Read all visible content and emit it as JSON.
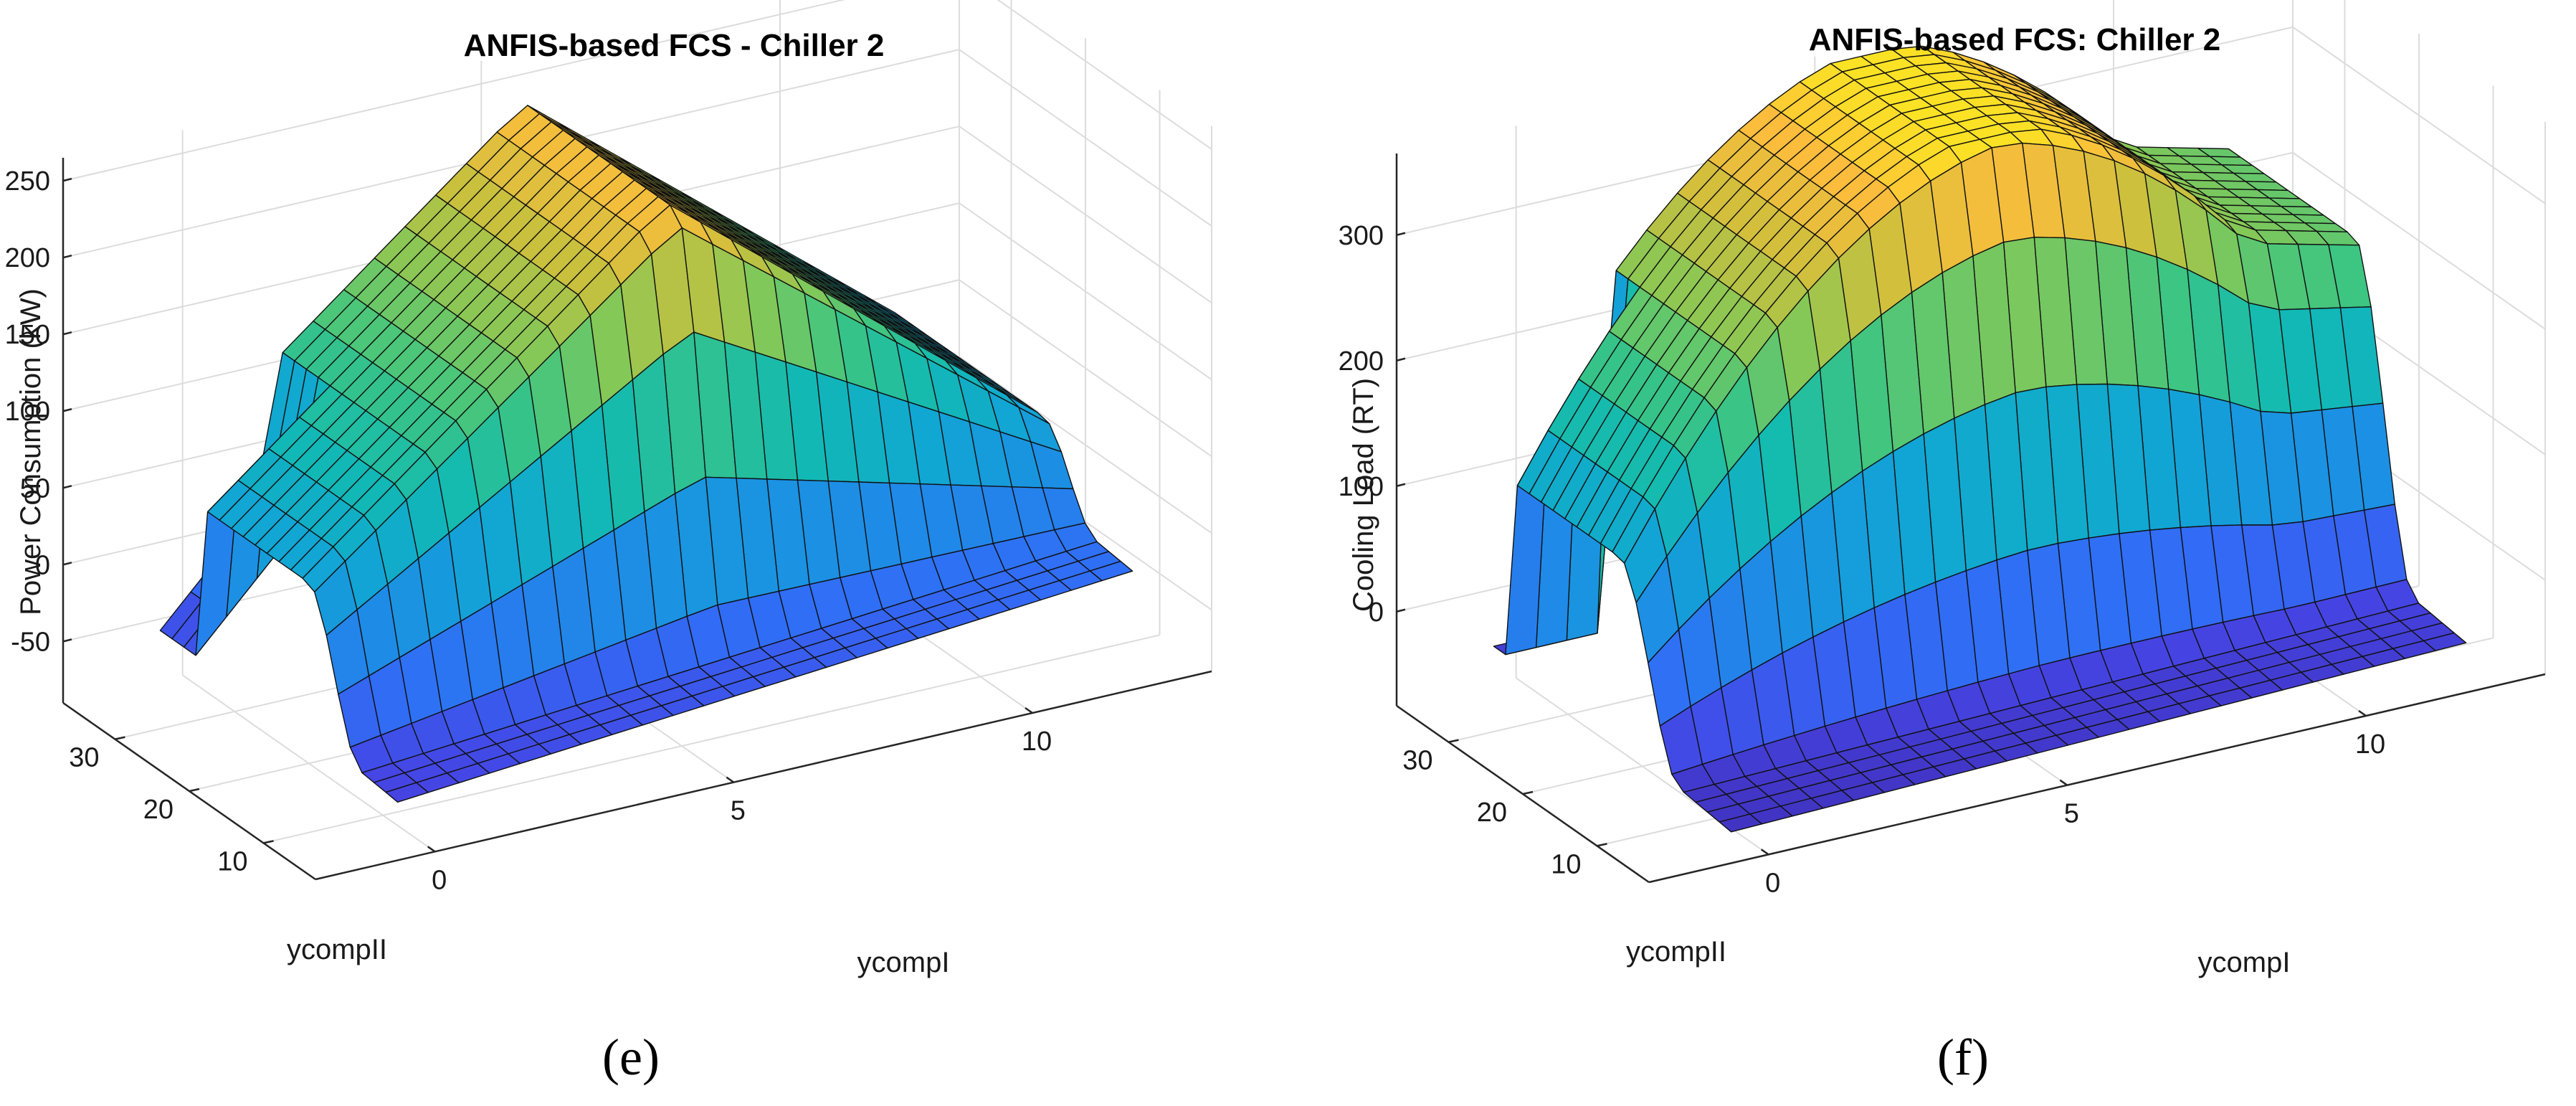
{
  "chart_data": [
    {
      "type": "surface",
      "title": "ANFIS-based FCS - Chiller 2",
      "xlabel": "ycompI",
      "ylabel": "ycompII",
      "zlabel": "Power Consumption (kW)",
      "xlim": [
        -2,
        13
      ],
      "ylim": [
        3,
        37
      ],
      "zlim": [
        -90,
        265
      ],
      "clim": [
        -90,
        270
      ],
      "xticks": [
        0,
        5,
        10
      ],
      "yticks": [
        10,
        20,
        30
      ],
      "zticks": [
        -50,
        0,
        50,
        100,
        150,
        200,
        250
      ],
      "xticklabels": [
        "0",
        "5",
        "10"
      ],
      "yticklabels": [
        "10",
        "20",
        "30"
      ],
      "zticklabels": [
        "-50",
        "0",
        "50",
        "100",
        "150",
        "200",
        "250"
      ],
      "caption": "(e)"
    },
    {
      "type": "surface",
      "title": "ANFIS-based FCS: Chiller 2",
      "xlabel": "ycompI",
      "ylabel": "ycompII",
      "zlabel": "Cooling Load (RT)",
      "xlim": [
        -2,
        13
      ],
      "ylim": [
        3,
        37
      ],
      "zlim": [
        -75,
        365
      ],
      "clim": [
        -75,
        380
      ],
      "xticks": [
        0,
        5,
        10
      ],
      "yticks": [
        10,
        20,
        30
      ],
      "zticks": [
        0,
        100,
        200,
        300
      ],
      "xticklabels": [
        "0",
        "5",
        "10"
      ],
      "yticklabels": [
        "10",
        "20",
        "30"
      ],
      "zticklabels": [
        "0",
        "100",
        "200",
        "300"
      ],
      "caption": "(f)"
    }
  ]
}
